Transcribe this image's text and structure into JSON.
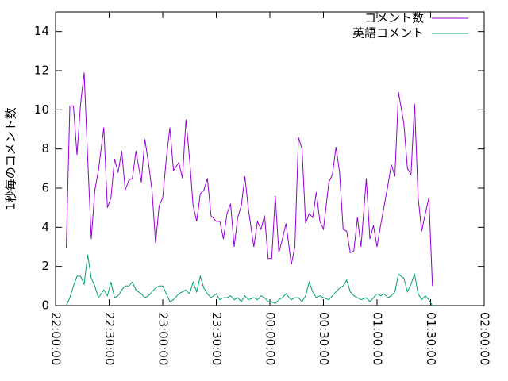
{
  "chart_data": {
    "type": "line",
    "ylabel": "1秒毎のコメント数",
    "x": [
      "22:06:00",
      "22:08:00",
      "22:10:00",
      "22:12:00",
      "22:14:00",
      "22:16:00",
      "22:18:00",
      "22:20:00",
      "22:22:00",
      "22:24:00",
      "22:27:00",
      "22:29:00",
      "22:31:00",
      "22:33:00",
      "22:35:00",
      "22:37:00",
      "22:39:00",
      "22:41:00",
      "22:43:00",
      "22:45:00",
      "22:48:00",
      "22:50:00",
      "22:52:00",
      "22:54:00",
      "22:56:00",
      "22:58:00",
      "23:00:00",
      "23:02:00",
      "23:04:00",
      "23:06:00",
      "23:09:00",
      "23:11:00",
      "23:13:00",
      "23:15:00",
      "23:17:00",
      "23:19:00",
      "23:21:00",
      "23:23:00",
      "23:25:00",
      "23:27:00",
      "23:30:00",
      "23:32:00",
      "23:34:00",
      "23:36:00",
      "23:38:00",
      "23:40:00",
      "23:42:00",
      "23:44:00",
      "23:46:00",
      "23:48:00",
      "23:51:00",
      "23:53:00",
      "23:55:00",
      "23:57:00",
      "23:59:00",
      "00:01:00",
      "00:03:00",
      "00:05:00",
      "00:07:00",
      "00:09:00",
      "00:12:00",
      "00:14:00",
      "00:16:00",
      "00:18:00",
      "00:20:00",
      "00:22:00",
      "00:24:00",
      "00:26:00",
      "00:28:00",
      "00:30:00",
      "00:33:00",
      "00:35:00",
      "00:37:00",
      "00:39:00",
      "00:41:00",
      "00:43:00",
      "00:45:00",
      "00:47:00",
      "00:49:00",
      "00:51:00",
      "00:54:00",
      "00:56:00",
      "00:58:00",
      "01:00:00",
      "01:02:00",
      "01:04:00",
      "01:06:00",
      "01:08:00",
      "01:10:00",
      "01:12:00",
      "01:15:00",
      "01:17:00",
      "01:19:00",
      "01:21:00",
      "01:23:00",
      "01:25:00",
      "01:27:00",
      "01:29:00",
      "01:31:00"
    ],
    "series": [
      {
        "name": "コメント数",
        "color": "#9400d3",
        "values": [
          2.96,
          10.2,
          10.2,
          7.7,
          10.3,
          11.9,
          7.5,
          3.4,
          5.9,
          6.9,
          9.1,
          5.0,
          5.5,
          7.5,
          6.8,
          7.9,
          5.9,
          6.4,
          6.5,
          7.9,
          6.3,
          8.5,
          7.3,
          5.9,
          3.2,
          5.1,
          5.5,
          7.5,
          9.1,
          6.9,
          7.3,
          6.5,
          9.5,
          7.5,
          5.1,
          4.3,
          5.7,
          5.9,
          6.5,
          4.6,
          4.3,
          4.3,
          3.4,
          4.7,
          5.2,
          3.0,
          4.5,
          5.1,
          6.6,
          4.9,
          3.0,
          4.3,
          3.9,
          4.6,
          2.4,
          2.4,
          5.6,
          2.7,
          3.4,
          4.2,
          2.1,
          3.0,
          8.6,
          8.0,
          4.2,
          4.7,
          4.5,
          5.8,
          4.3,
          3.9,
          6.3,
          6.7,
          8.1,
          6.8,
          3.9,
          3.8,
          2.7,
          2.8,
          4.5,
          3.0,
          6.5,
          3.4,
          4.1,
          3.0,
          4.1,
          5.1,
          6.1,
          7.2,
          6.6,
          10.9,
          9.3,
          7.0,
          6.7,
          10.3,
          5.5,
          3.8,
          4.7,
          5.5,
          1.0
        ]
      },
      {
        "name": "英語コメント",
        "color": "#009e73",
        "values": [
          0,
          0.4,
          1.0,
          1.5,
          1.5,
          1.1,
          2.6,
          1.4,
          1.0,
          0.4,
          0.8,
          0.5,
          1.2,
          0.4,
          0.5,
          0.8,
          1.0,
          1.0,
          1.2,
          0.8,
          0.6,
          0.4,
          0.5,
          0.7,
          0.9,
          1.0,
          1.0,
          0.6,
          0.2,
          0.3,
          0.6,
          0.7,
          0.8,
          0.6,
          1.2,
          0.7,
          1.5,
          0.9,
          0.6,
          0.4,
          0.6,
          0.3,
          0.4,
          0.4,
          0.5,
          0.3,
          0.4,
          0.2,
          0.5,
          0.3,
          0.4,
          0.3,
          0.5,
          0.4,
          0.2,
          0.2,
          0.1,
          0.3,
          0.4,
          0.6,
          0.3,
          0.4,
          0.4,
          0.2,
          0.5,
          1.2,
          0.7,
          0.4,
          0.5,
          0.4,
          0.3,
          0.5,
          0.7,
          0.9,
          1.0,
          1.3,
          0.7,
          0.5,
          0.4,
          0.3,
          0.4,
          0.2,
          0.4,
          0.6,
          0.5,
          0.6,
          0.4,
          0.5,
          0.7,
          1.6,
          1.4,
          0.7,
          1.1,
          1.6,
          0.6,
          0.3,
          0.5,
          0.3,
          0
        ]
      }
    ],
    "xlim": [
      "22:00:00",
      "02:00:00"
    ],
    "xticks": [
      "22:00:00",
      "22:30:00",
      "23:00:00",
      "23:30:00",
      "00:00:00",
      "00:30:00",
      "01:00:00",
      "01:30:00",
      "02:00:00"
    ],
    "ylim": [
      0,
      15
    ],
    "yticks": [
      0,
      2,
      4,
      6,
      8,
      10,
      12,
      14
    ],
    "legend": "top-right"
  }
}
